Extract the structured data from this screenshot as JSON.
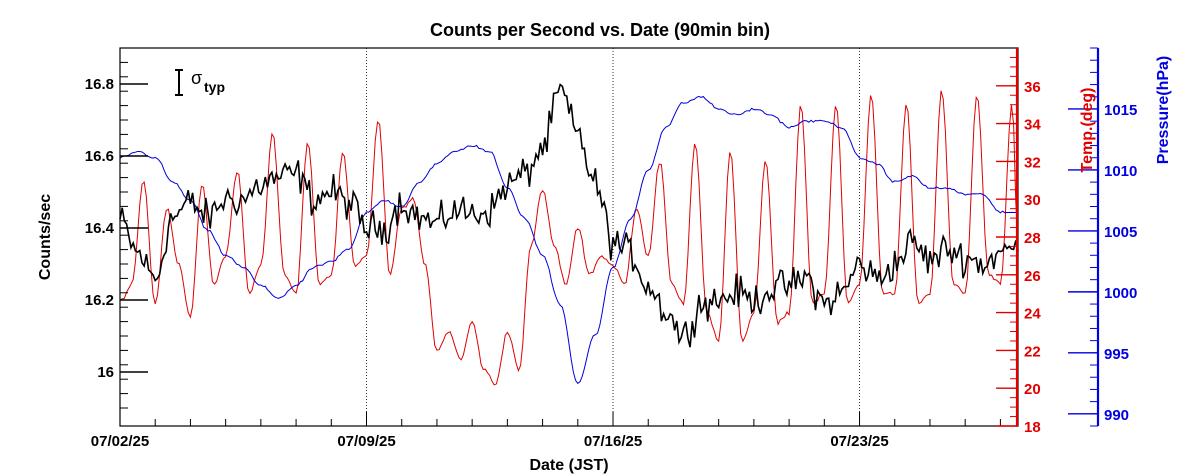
{
  "chart_data": {
    "type": "line",
    "title": "Counts per Second vs. Date (90min bin)",
    "xlabel": "Date (JST)",
    "ylabel": "Counts/sec",
    "ylabel_right_1": "Temp.(deg)",
    "ylabel_right_2": "Pressure(hPa)",
    "x_ticks": [
      "07/02/25",
      "07/09/25",
      "07/16/25",
      "07/23/25"
    ],
    "xlim": [
      "2025-07-02 00:00",
      "2025-07-27 12:00"
    ],
    "ylim": [
      15.85,
      16.9
    ],
    "y_ticks": [
      "16",
      "16.2",
      "16.4",
      "16.6",
      "16.8"
    ],
    "temp_ylim": [
      18,
      38
    ],
    "temp_ticks": [
      "18",
      "20",
      "22",
      "24",
      "26",
      "28",
      "30",
      "32",
      "34",
      "36"
    ],
    "pressure_ylim": [
      989,
      1020
    ],
    "pressure_ticks": [
      "990",
      "995",
      "1000",
      "1005",
      "1010",
      "1015"
    ],
    "legend": {
      "symbol": "σ",
      "subscript": "typ",
      "placement": "top-left"
    },
    "grid": "vertical dotted lines at week ticks",
    "series": [
      {
        "name": "Counts/sec",
        "axis": "left",
        "color": "#000000",
        "points": [
          [
            "2025-07-02 00:00",
            16.42
          ],
          [
            "2025-07-02 12:00",
            16.33
          ],
          [
            "2025-07-03 00:00",
            16.26
          ],
          [
            "2025-07-03 12:00",
            16.43
          ],
          [
            "2025-07-04 00:00",
            16.47
          ],
          [
            "2025-07-04 12:00",
            16.43
          ],
          [
            "2025-07-05 00:00",
            16.48
          ],
          [
            "2025-07-05 12:00",
            16.48
          ],
          [
            "2025-07-06 00:00",
            16.52
          ],
          [
            "2025-07-06 12:00",
            16.54
          ],
          [
            "2025-07-07 00:00",
            16.55
          ],
          [
            "2025-07-07 12:00",
            16.48
          ],
          [
            "2025-07-08 00:00",
            16.5
          ],
          [
            "2025-07-08 12:00",
            16.47
          ],
          [
            "2025-07-09 00:00",
            16.4
          ],
          [
            "2025-07-09 12:00",
            16.4
          ],
          [
            "2025-07-10 00:00",
            16.47
          ],
          [
            "2025-07-10 12:00",
            16.43
          ],
          [
            "2025-07-11 00:00",
            16.41
          ],
          [
            "2025-07-11 12:00",
            16.45
          ],
          [
            "2025-07-12 00:00",
            16.44
          ],
          [
            "2025-07-12 12:00",
            16.45
          ],
          [
            "2025-07-13 00:00",
            16.52
          ],
          [
            "2025-07-13 12:00",
            16.55
          ],
          [
            "2025-07-14 00:00",
            16.62
          ],
          [
            "2025-07-14 12:00",
            16.78
          ],
          [
            "2025-07-15 00:00",
            16.66
          ],
          [
            "2025-07-15 12:00",
            16.52
          ],
          [
            "2025-07-16 00:00",
            16.36
          ],
          [
            "2025-07-16 12:00",
            16.33
          ],
          [
            "2025-07-17 00:00",
            16.24
          ],
          [
            "2025-07-17 12:00",
            16.17
          ],
          [
            "2025-07-18 00:00",
            16.1
          ],
          [
            "2025-07-18 12:00",
            16.19
          ],
          [
            "2025-07-19 00:00",
            16.2
          ],
          [
            "2025-07-19 12:00",
            16.22
          ],
          [
            "2025-07-20 00:00",
            16.2
          ],
          [
            "2025-07-20 12:00",
            16.23
          ],
          [
            "2025-07-21 00:00",
            16.24
          ],
          [
            "2025-07-21 12:00",
            16.26
          ],
          [
            "2025-07-22 00:00",
            16.19
          ],
          [
            "2025-07-22 12:00",
            16.22
          ],
          [
            "2025-07-23 00:00",
            16.3
          ],
          [
            "2025-07-23 12:00",
            16.26
          ],
          [
            "2025-07-24 00:00",
            16.3
          ],
          [
            "2025-07-24 12:00",
            16.36
          ],
          [
            "2025-07-25 00:00",
            16.31
          ],
          [
            "2025-07-25 12:00",
            16.34
          ],
          [
            "2025-07-26 00:00",
            16.32
          ],
          [
            "2025-07-26 12:00",
            16.3
          ],
          [
            "2025-07-27 00:00",
            16.33
          ],
          [
            "2025-07-27 12:00",
            16.35
          ]
        ]
      },
      {
        "name": "Temp.(deg)",
        "axis": "right-1",
        "color": "#e00000",
        "points": [
          [
            "2025-07-02 00:00",
            24.6
          ],
          [
            "2025-07-02 08:00",
            25.5
          ],
          [
            "2025-07-02 16:00",
            31.0
          ],
          [
            "2025-07-03 00:00",
            24.5
          ],
          [
            "2025-07-03 08:00",
            29.5
          ],
          [
            "2025-07-03 16:00",
            26.5
          ],
          [
            "2025-07-04 00:00",
            23.8
          ],
          [
            "2025-07-04 08:00",
            30.8
          ],
          [
            "2025-07-04 16:00",
            25.5
          ],
          [
            "2025-07-05 00:00",
            27.0
          ],
          [
            "2025-07-05 08:00",
            31.5
          ],
          [
            "2025-07-05 16:00",
            25.0
          ],
          [
            "2025-07-06 00:00",
            26.5
          ],
          [
            "2025-07-06 08:00",
            33.5
          ],
          [
            "2025-07-06 16:00",
            26.0
          ],
          [
            "2025-07-07 00:00",
            25.0
          ],
          [
            "2025-07-07 08:00",
            33.0
          ],
          [
            "2025-07-07 16:00",
            25.5
          ],
          [
            "2025-07-08 00:00",
            26.0
          ],
          [
            "2025-07-08 08:00",
            32.5
          ],
          [
            "2025-07-08 16:00",
            26.5
          ],
          [
            "2025-07-09 00:00",
            27.0
          ],
          [
            "2025-07-09 08:00",
            34.2
          ],
          [
            "2025-07-09 16:00",
            26.0
          ],
          [
            "2025-07-10 00:00",
            29.5
          ],
          [
            "2025-07-10 08:00",
            30.0
          ],
          [
            "2025-07-10 16:00",
            26.5
          ],
          [
            "2025-07-11 00:00",
            22.0
          ],
          [
            "2025-07-11 08:00",
            23.0
          ],
          [
            "2025-07-11 16:00",
            21.5
          ],
          [
            "2025-07-12 00:00",
            23.5
          ],
          [
            "2025-07-12 08:00",
            21.0
          ],
          [
            "2025-07-12 16:00",
            20.2
          ],
          [
            "2025-07-13 00:00",
            23.0
          ],
          [
            "2025-07-13 08:00",
            21.0
          ],
          [
            "2025-07-13 16:00",
            27.5
          ],
          [
            "2025-07-14 00:00",
            30.5
          ],
          [
            "2025-07-14 08:00",
            27.5
          ],
          [
            "2025-07-14 16:00",
            25.5
          ],
          [
            "2025-07-15 00:00",
            28.5
          ],
          [
            "2025-07-15 08:00",
            26.0
          ],
          [
            "2025-07-15 16:00",
            27.0
          ],
          [
            "2025-07-16 00:00",
            26.5
          ],
          [
            "2025-07-16 08:00",
            25.5
          ],
          [
            "2025-07-16 16:00",
            29.5
          ],
          [
            "2025-07-17 00:00",
            27.0
          ],
          [
            "2025-07-17 08:00",
            32.0
          ],
          [
            "2025-07-17 16:00",
            25.5
          ],
          [
            "2025-07-18 00:00",
            24.5
          ],
          [
            "2025-07-18 08:00",
            33.0
          ],
          [
            "2025-07-18 16:00",
            24.0
          ],
          [
            "2025-07-19 00:00",
            22.5
          ],
          [
            "2025-07-19 08:00",
            32.5
          ],
          [
            "2025-07-19 16:00",
            22.5
          ],
          [
            "2025-07-20 00:00",
            24.0
          ],
          [
            "2025-07-20 08:00",
            32.0
          ],
          [
            "2025-07-20 16:00",
            23.5
          ],
          [
            "2025-07-21 00:00",
            24.0
          ],
          [
            "2025-07-21 08:00",
            35.0
          ],
          [
            "2025-07-21 16:00",
            24.5
          ],
          [
            "2025-07-22 00:00",
            25.0
          ],
          [
            "2025-07-22 08:00",
            35.0
          ],
          [
            "2025-07-22 16:00",
            24.5
          ],
          [
            "2025-07-23 00:00",
            25.5
          ],
          [
            "2025-07-23 08:00",
            35.5
          ],
          [
            "2025-07-23 16:00",
            25.0
          ],
          [
            "2025-07-24 00:00",
            25.0
          ],
          [
            "2025-07-24 08:00",
            35.0
          ],
          [
            "2025-07-24 16:00",
            24.5
          ],
          [
            "2025-07-25 00:00",
            25.0
          ],
          [
            "2025-07-25 08:00",
            35.8
          ],
          [
            "2025-07-25 16:00",
            25.5
          ],
          [
            "2025-07-26 00:00",
            25.0
          ],
          [
            "2025-07-26 08:00",
            35.5
          ],
          [
            "2025-07-26 16:00",
            26.0
          ],
          [
            "2025-07-27 00:00",
            25.5
          ],
          [
            "2025-07-27 08:00",
            35.0
          ],
          [
            "2025-07-27 12:00",
            27.5
          ]
        ]
      },
      {
        "name": "Pressure(hPa)",
        "axis": "right-2",
        "color": "#0000e0",
        "points": [
          [
            "2025-07-02 00:00",
            1011.0
          ],
          [
            "2025-07-02 12:00",
            1011.5
          ],
          [
            "2025-07-03 00:00",
            1011.0
          ],
          [
            "2025-07-03 12:00",
            1009.0
          ],
          [
            "2025-07-04 00:00",
            1007.5
          ],
          [
            "2025-07-04 12:00",
            1005.0
          ],
          [
            "2025-07-05 00:00",
            1003.0
          ],
          [
            "2025-07-05 12:00",
            1002.0
          ],
          [
            "2025-07-06 00:00",
            1000.5
          ],
          [
            "2025-07-06 12:00",
            999.5
          ],
          [
            "2025-07-07 00:00",
            1000.5
          ],
          [
            "2025-07-07 12:00",
            1002.0
          ],
          [
            "2025-07-08 00:00",
            1002.5
          ],
          [
            "2025-07-08 12:00",
            1003.5
          ],
          [
            "2025-07-09 00:00",
            1006.5
          ],
          [
            "2025-07-09 12:00",
            1007.5
          ],
          [
            "2025-07-10 00:00",
            1007.0
          ],
          [
            "2025-07-10 12:00",
            1009.0
          ],
          [
            "2025-07-11 00:00",
            1010.5
          ],
          [
            "2025-07-11 12:00",
            1011.5
          ],
          [
            "2025-07-12 00:00",
            1012.0
          ],
          [
            "2025-07-12 12:00",
            1011.5
          ],
          [
            "2025-07-13 00:00",
            1008.5
          ],
          [
            "2025-07-13 12:00",
            1006.0
          ],
          [
            "2025-07-14 00:00",
            1003.0
          ],
          [
            "2025-07-14 12:00",
            999.0
          ],
          [
            "2025-07-15 00:00",
            992.5
          ],
          [
            "2025-07-15 12:00",
            996.5
          ],
          [
            "2025-07-16 00:00",
            1002.0
          ],
          [
            "2025-07-16 12:00",
            1006.0
          ],
          [
            "2025-07-17 00:00",
            1010.0
          ],
          [
            "2025-07-17 12:00",
            1013.5
          ],
          [
            "2025-07-18 00:00",
            1015.5
          ],
          [
            "2025-07-18 12:00",
            1016.0
          ],
          [
            "2025-07-19 00:00",
            1015.0
          ],
          [
            "2025-07-19 12:00",
            1014.5
          ],
          [
            "2025-07-20 00:00",
            1015.0
          ],
          [
            "2025-07-20 12:00",
            1014.5
          ],
          [
            "2025-07-21 00:00",
            1013.5
          ],
          [
            "2025-07-21 12:00",
            1014.0
          ],
          [
            "2025-07-22 00:00",
            1014.0
          ],
          [
            "2025-07-22 12:00",
            1013.5
          ],
          [
            "2025-07-23 00:00",
            1011.0
          ],
          [
            "2025-07-23 12:00",
            1010.5
          ],
          [
            "2025-07-24 00:00",
            1009.0
          ],
          [
            "2025-07-24 12:00",
            1009.5
          ],
          [
            "2025-07-25 00:00",
            1008.5
          ],
          [
            "2025-07-25 12:00",
            1008.5
          ],
          [
            "2025-07-26 00:00",
            1008.0
          ],
          [
            "2025-07-26 12:00",
            1008.0
          ],
          [
            "2025-07-27 00:00",
            1006.5
          ],
          [
            "2025-07-27 12:00",
            1006.5
          ]
        ]
      }
    ]
  }
}
